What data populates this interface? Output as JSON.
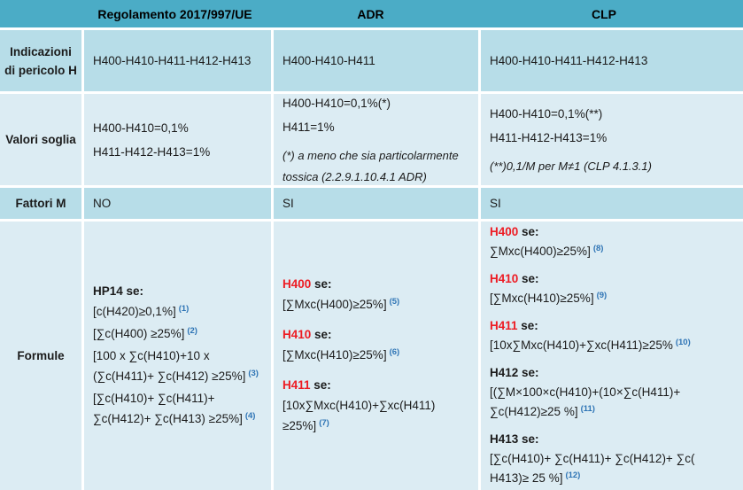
{
  "colors": {
    "header_bg": "#4bacc6",
    "row_band_dark": "#b7dde8",
    "row_band_light": "#dcecf3",
    "hazard_code_red": "#ed1b23",
    "footnote_ref_blue": "#2e74b5"
  },
  "header": {
    "columns": [
      "Regolamento 2017/997/UE",
      "ADR",
      "CLP"
    ]
  },
  "rows": {
    "indicazioni": {
      "label": "Indicazioni di pericolo H",
      "reg": "H400-H410-H411-H412-H413",
      "adr": "H400-H410-H411",
      "clp": "H400-H410-H411-H412-H413"
    },
    "valori": {
      "label": "Valori soglia",
      "reg": {
        "lines": [
          "H400-H410=0,1%",
          "H411-H412-H413=1%"
        ]
      },
      "adr": {
        "lines": [
          "H400-H410=0,1%(*)",
          "H411=1%"
        ],
        "note_lines": [
          "(*) a meno che sia particolarmente",
          "tossica (2.2.9.1.10.4.1 ADR)"
        ]
      },
      "clp": {
        "lines": [
          "H400-H410=0,1%(**)",
          "H411-H412-H413=1%"
        ],
        "note_lines": [
          "(**)0,1/M per M≠1 (CLP 4.1.3.1)"
        ]
      }
    },
    "fattori": {
      "label": "Fattori M",
      "reg": "NO",
      "adr": "SI",
      "clp": "SI"
    },
    "formule": {
      "label": "Formule",
      "reg": {
        "blocks": [
          {
            "code": "HP14",
            "color": "black",
            "suffix": " se:",
            "formulas": [
              {
                "lines": [
                  "[c(H420)≥0,1%]"
                ],
                "sup": "(1)"
              },
              {
                "lines": [
                  "[∑c(H400) ≥25%]"
                ],
                "sup": "(2)"
              },
              {
                "lines": [
                  "[100 x ∑c(H410)+10 x",
                  "(∑c(H411)+ ∑c(H412) ≥25%]"
                ],
                "sup": "(3)"
              },
              {
                "lines": [
                  "[∑c(H410)+ ∑c(H411)+",
                  "∑c(H412)+ ∑c(H413) ≥25%]"
                ],
                "sup": "(4)"
              }
            ]
          }
        ]
      },
      "adr": {
        "blocks": [
          {
            "code": "H400",
            "color": "red",
            "suffix": " se:",
            "formulas": [
              {
                "lines": [
                  "[∑Mxc(H400)≥25%]"
                ],
                "sup": "(5)"
              }
            ]
          },
          {
            "code": "H410",
            "color": "red",
            "suffix": " se:",
            "formulas": [
              {
                "lines": [
                  "[∑Mxc(H410)≥25%]"
                ],
                "sup": "(6)"
              }
            ]
          },
          {
            "code": "H411",
            "color": "red",
            "suffix": " se:",
            "formulas": [
              {
                "lines": [
                  "[10x∑Mxc(H410)+∑xc(H411)",
                  "≥25%]"
                ],
                "sup": "(7)"
              }
            ]
          }
        ]
      },
      "clp": {
        "blocks": [
          {
            "code": "H400",
            "color": "red",
            "suffix": " se:",
            "formulas": [
              {
                "lines": [
                  "∑Mxc(H400)≥25%]"
                ],
                "sup": "(8)"
              }
            ]
          },
          {
            "code": "H410",
            "color": "red",
            "suffix": " se:",
            "formulas": [
              {
                "lines": [
                  "[∑Mxc(H410)≥25%]"
                ],
                "sup": "(9)"
              }
            ]
          },
          {
            "code": "H411",
            "color": "red",
            "suffix": " se:",
            "formulas": [
              {
                "lines": [
                  "[10x∑Mxc(H410)+∑xc(H411)≥25%"
                ],
                "sup": "(10)"
              }
            ]
          },
          {
            "code": "H412",
            "color": "black",
            "suffix": " se:",
            "formulas": [
              {
                "lines": [
                  "[(∑M×100×c(H410)+(10×∑c(H411)+",
                  "∑c(H412)≥25 %]"
                ],
                "sup": "(11)"
              }
            ]
          },
          {
            "code": "H413",
            "color": "black",
            "suffix": " se:",
            "formulas": [
              {
                "lines": [
                  "[∑c(H410)+ ∑c(H411)+ ∑c(H412)+ ∑c(",
                  "H413)≥ 25 %]"
                ],
                "sup": "(12)"
              }
            ]
          }
        ]
      }
    }
  }
}
